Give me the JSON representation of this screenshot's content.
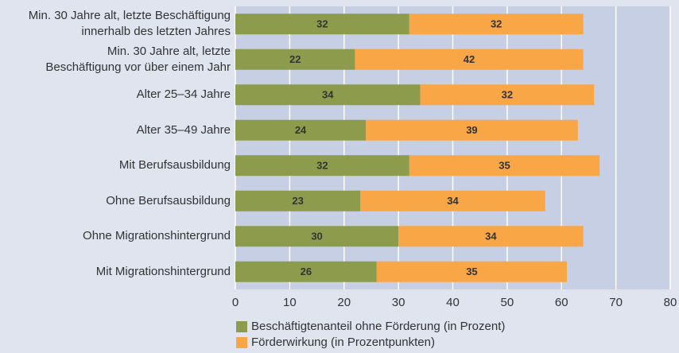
{
  "chart_data": {
    "type": "stacked-barh",
    "categories": [
      "Min. 30 Jahre alt, letzte Beschäftigung\ninnerhalb des letzten Jahres",
      "Min. 30 Jahre alt, letzte\nBeschäftigung vor über einem Jahr",
      "Alter 25–34 Jahre",
      "Alter 35–49 Jahre",
      "Mit Berufsausbildung",
      "Ohne Berufsausbildung",
      "Ohne Migrationshintergrund",
      "Mit Migrationshintergrund"
    ],
    "series": [
      {
        "name": "Beschäftigtenanteil ohne Förderung (in Prozent)",
        "color": "#8d9b4c",
        "values": [
          32,
          22,
          34,
          24,
          32,
          23,
          30,
          26
        ]
      },
      {
        "name": "Förderwirkung (in Prozentpunkten)",
        "color": "#f9a647",
        "values": [
          32,
          42,
          32,
          39,
          35,
          34,
          34,
          35
        ]
      }
    ],
    "xlim": [
      0,
      80
    ],
    "xticks": [
      0,
      10,
      20,
      30,
      40,
      50,
      60,
      70,
      80
    ],
    "grid": true,
    "legend": "bottom"
  }
}
